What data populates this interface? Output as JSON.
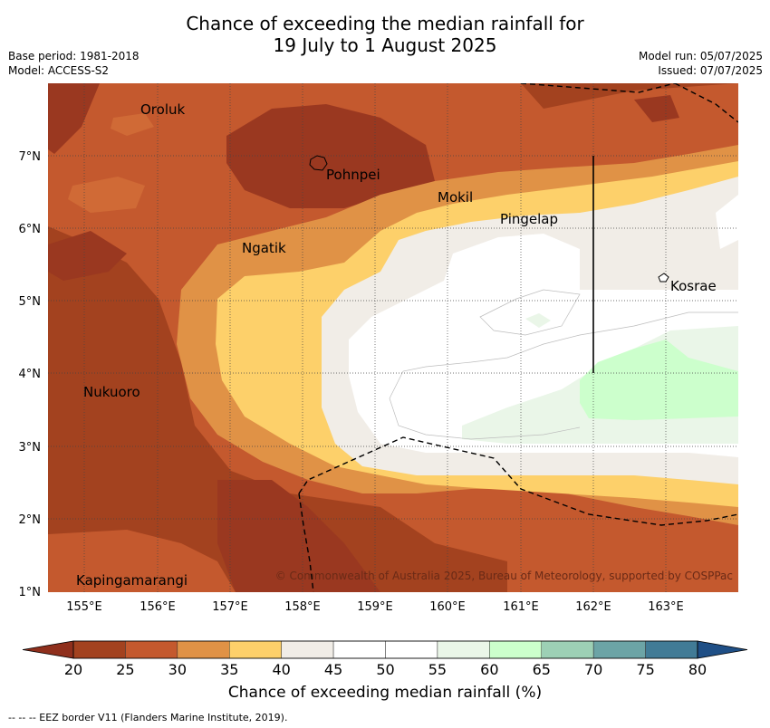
{
  "title": {
    "line1": "Chance of exceeding the median rainfall for",
    "line2": "19 July to 1 August 2025"
  },
  "meta": {
    "base_period": "Base period: 1981-2018",
    "model": "Model: ACCESS-S2",
    "model_run": "Model run: 05/07/2025",
    "issued": "Issued: 07/07/2025"
  },
  "map": {
    "lon_labels": [
      "155°E",
      "156°E",
      "157°E",
      "158°E",
      "159°E",
      "160°E",
      "161°E",
      "162°E",
      "163°E"
    ],
    "lat_labels": [
      "1°N",
      "2°N",
      "3°N",
      "4°N",
      "5°N",
      "6°N",
      "7°N"
    ],
    "places": [
      {
        "name": "Oroluk"
      },
      {
        "name": "Pohnpei"
      },
      {
        "name": "Mokil"
      },
      {
        "name": "Pingelap"
      },
      {
        "name": "Ngatik"
      },
      {
        "name": "Kosrae"
      },
      {
        "name": "Nukuoro"
      },
      {
        "name": "Kapingamarangi"
      }
    ],
    "copyright": "© Commonwealth of Australia 2025, Bureau of Meteorology, supported by COSPPac"
  },
  "colorbar": {
    "ticks": [
      "20",
      "25",
      "30",
      "35",
      "40",
      "45",
      "50",
      "55",
      "60",
      "65",
      "70",
      "75",
      "80"
    ],
    "colors": [
      "#a3421f",
      "#c4592e",
      "#e09246",
      "#fdd06a",
      "#f1ede7",
      "#ffffff",
      "#ffffff",
      "#eaf6e8",
      "#ccffcc",
      "#9dd0b5",
      "#6ca4a6",
      "#417b96"
    ],
    "under_color": "#8f2f1c",
    "over_color": "#1f4f86",
    "label": "Chance of exceeding median rainfall (%)"
  },
  "footnote": "--  --  -- EEZ border V11 (Flanders Marine Institute, 2019)."
}
